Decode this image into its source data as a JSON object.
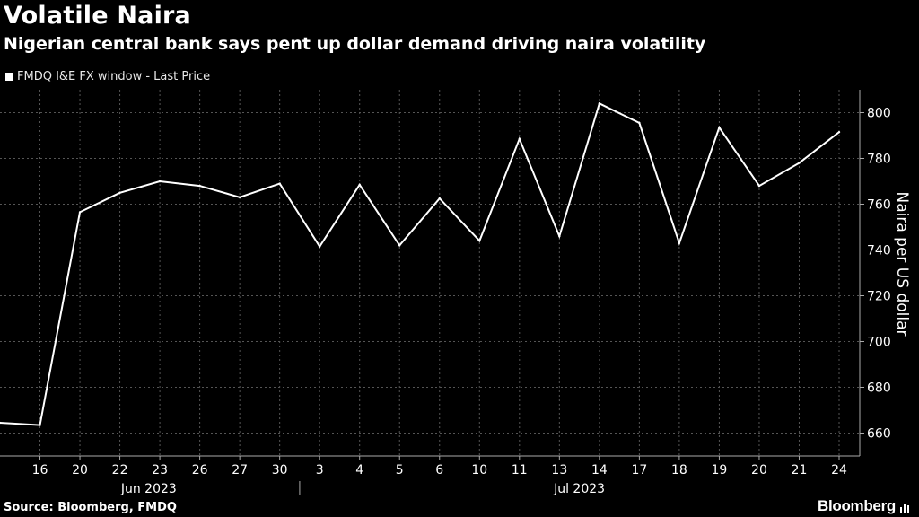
{
  "title": "Volatile Naira",
  "subtitle": "Nigerian central bank says pent up dollar demand driving naira volatility",
  "source": "Source: Bloomberg, FMDQ",
  "brand": "Bloomberg",
  "colors": {
    "background": "#000000",
    "line": "#ffffff",
    "grid": "#555555",
    "text": "#ffffff"
  },
  "chart_data": {
    "type": "line",
    "title": "Volatile Naira",
    "xlabel": "",
    "ylabel": "Naira per US dollar",
    "ylim": [
      650,
      810
    ],
    "yticks": [
      660,
      680,
      700,
      720,
      740,
      760,
      780,
      800
    ],
    "grid": true,
    "legend_position": "top-left",
    "x_month_labels": [
      "Jun 2023",
      "Jul 2023"
    ],
    "x": [
      "15",
      "16",
      "20",
      "22",
      "23",
      "26",
      "27",
      "30",
      "3",
      "4",
      "5",
      "6",
      "10",
      "11",
      "13",
      "14",
      "17",
      "18",
      "19",
      "20",
      "21",
      "24"
    ],
    "x_tick_labels": [
      "16",
      "20",
      "22",
      "23",
      "26",
      "27",
      "30",
      "3",
      "4",
      "5",
      "6",
      "10",
      "11",
      "13",
      "14",
      "17",
      "18",
      "19",
      "20",
      "21",
      "24"
    ],
    "series": [
      {
        "name": "FMDQ I&E FX window - Last Price",
        "values": [
          664.5,
          663.5,
          756.5,
          765,
          770,
          768,
          763,
          769,
          741.5,
          768.5,
          742,
          762.5,
          744,
          788.5,
          746,
          804,
          795.5,
          743,
          793.5,
          768,
          778,
          791.5
        ]
      }
    ]
  }
}
